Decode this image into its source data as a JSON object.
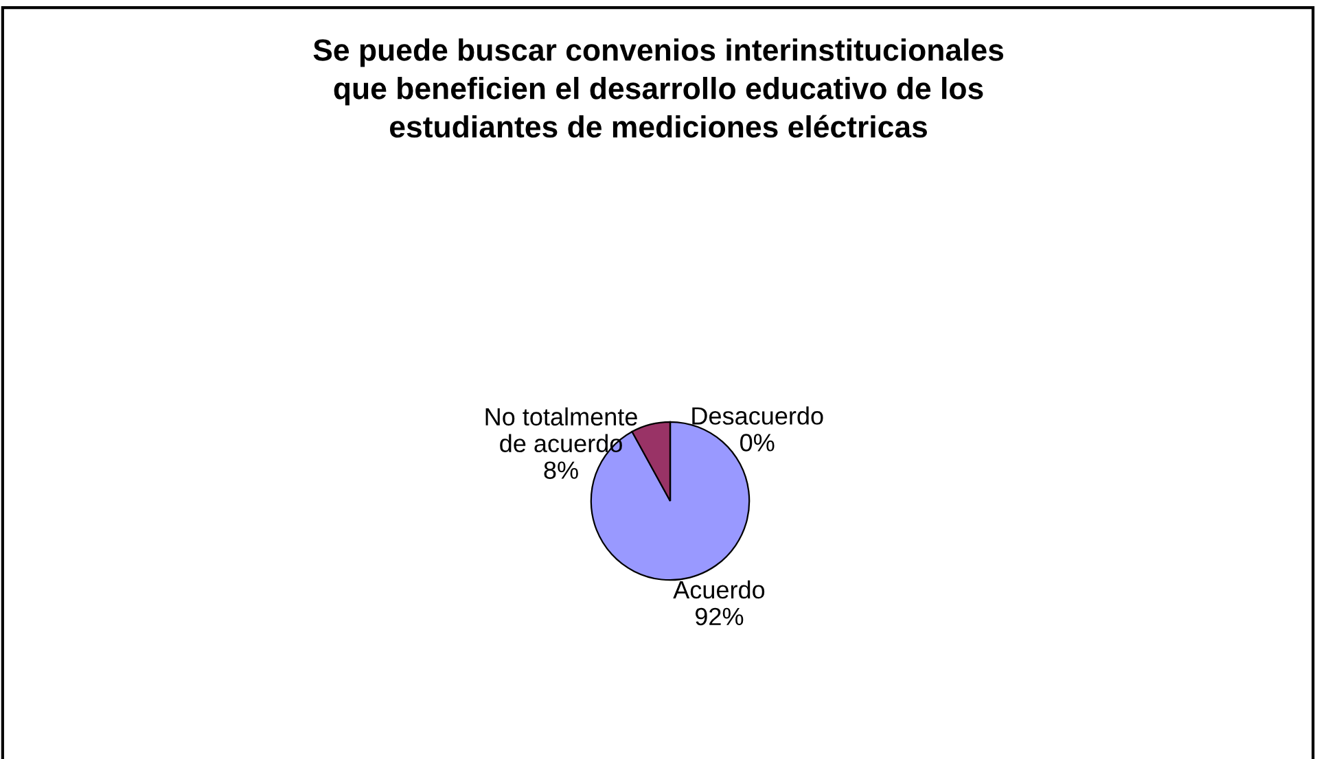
{
  "chart_data": {
    "type": "pie",
    "title": "Se puede buscar convenios interinstitucionales\nque beneficien el desarrollo educativo de los\nestudiantes de mediciones eléctricas",
    "categories": [
      "Acuerdo",
      "No totalmente\nde acuerdo",
      "Desacuerdo"
    ],
    "values": [
      92,
      8,
      0
    ],
    "colors": [
      "#9999ff",
      "#993366",
      "#ffffcc"
    ],
    "value_labels": [
      "92%",
      "8%",
      "0%"
    ],
    "legend": false
  }
}
